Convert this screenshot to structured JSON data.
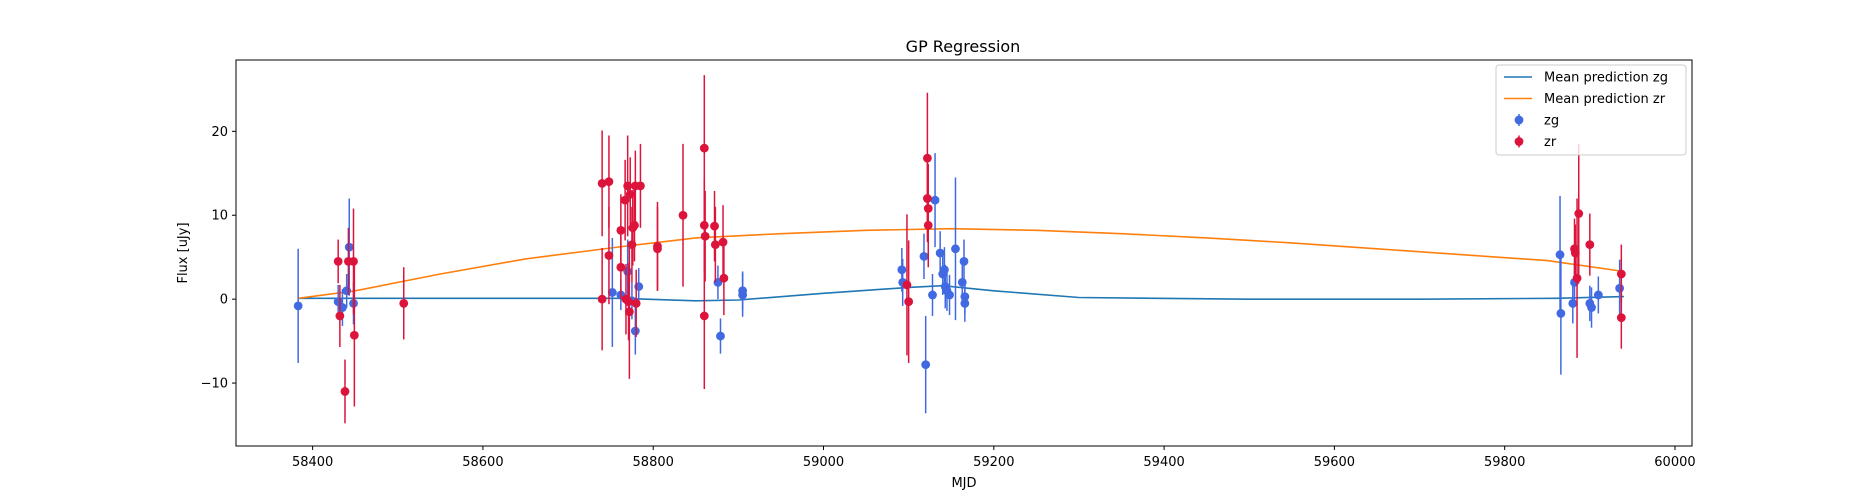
{
  "chart_data": {
    "type": "scatter",
    "title": "GP Regression",
    "xlabel": "MJD",
    "ylabel": "Flux [uJy]",
    "xlim": [
      58310,
      60020
    ],
    "ylim": [
      -17.5,
      28.5
    ],
    "xticks": [
      58400,
      58600,
      58800,
      59000,
      59200,
      59400,
      59600,
      59800,
      60000
    ],
    "yticks": [
      -10,
      0,
      10,
      20
    ],
    "grid": false,
    "legend_position": "top-right",
    "colors": {
      "mean_zg": "#1f77b4",
      "mean_zr": "#ff7f0e",
      "zg": "#4169e1",
      "zr": "#dc143c"
    },
    "legend": [
      {
        "label": "Mean prediction zg",
        "kind": "line",
        "series": "mean_zg"
      },
      {
        "label": "Mean prediction zr",
        "kind": "line",
        "series": "mean_zr"
      },
      {
        "label": "zg",
        "kind": "errorbar",
        "series": "zg"
      },
      {
        "label": "zr",
        "kind": "errorbar",
        "series": "zr"
      }
    ],
    "lines": [
      {
        "name": "Mean prediction zg",
        "key": "mean_zg",
        "x": [
          58383,
          58440,
          58600,
          58760,
          58850,
          58900,
          59000,
          59100,
          59140,
          59200,
          59300,
          59500,
          59700,
          59860,
          59940
        ],
        "y": [
          0.1,
          0.1,
          0.1,
          0.1,
          -0.2,
          -0.1,
          0.7,
          1.4,
          1.6,
          1.0,
          0.2,
          0.0,
          0.0,
          0.1,
          0.3
        ]
      },
      {
        "name": "Mean prediction zr",
        "key": "mean_zr",
        "x": [
          58383,
          58450,
          58550,
          58650,
          58750,
          58850,
          58950,
          59050,
          59150,
          59250,
          59350,
          59450,
          59550,
          59650,
          59750,
          59850,
          59940
        ],
        "y": [
          0.1,
          1.0,
          3.0,
          4.8,
          6.1,
          7.3,
          7.8,
          8.2,
          8.4,
          8.2,
          7.8,
          7.3,
          6.7,
          6.0,
          5.3,
          4.6,
          3.3
        ]
      }
    ],
    "series": [
      {
        "name": "zg",
        "key": "zg",
        "points": [
          {
            "x": 58383,
            "y": -0.8,
            "err": 6.8
          },
          {
            "x": 58430,
            "y": -0.3,
            "err": 2.0
          },
          {
            "x": 58435,
            "y": -1.0,
            "err": 2.2
          },
          {
            "x": 58440,
            "y": 1.0,
            "err": 2.0
          },
          {
            "x": 58443,
            "y": 6.2,
            "err": 5.8
          },
          {
            "x": 58448,
            "y": -0.5,
            "err": 2.5
          },
          {
            "x": 58752,
            "y": 0.8,
            "err": 6.5
          },
          {
            "x": 58762,
            "y": 0.5,
            "err": 1.8
          },
          {
            "x": 58770,
            "y": 3.3,
            "err": 3.8
          },
          {
            "x": 58775,
            "y": -0.2,
            "err": 2.2
          },
          {
            "x": 58779,
            "y": -3.8,
            "err": 2.8
          },
          {
            "x": 58783,
            "y": 1.5,
            "err": 2.2
          },
          {
            "x": 58876,
            "y": 2.0,
            "err": 2.0
          },
          {
            "x": 58879,
            "y": -4.4,
            "err": 2.1
          },
          {
            "x": 58905,
            "y": 0.5,
            "err": 2.6
          },
          {
            "x": 58905,
            "y": 1.0,
            "err": 2.3
          },
          {
            "x": 59092,
            "y": 3.5,
            "err": 2.6
          },
          {
            "x": 59093,
            "y": 2.0,
            "err": 2.8
          },
          {
            "x": 59118,
            "y": 5.1,
            "err": 2.7
          },
          {
            "x": 59120,
            "y": -7.8,
            "err": 5.8
          },
          {
            "x": 59128,
            "y": 0.5,
            "err": 2.5
          },
          {
            "x": 59131,
            "y": 11.8,
            "err": 5.6
          },
          {
            "x": 59137,
            "y": 5.5,
            "err": 2.6
          },
          {
            "x": 59140,
            "y": 3.0,
            "err": 2.5
          },
          {
            "x": 59142,
            "y": 3.5,
            "err": 2.7
          },
          {
            "x": 59143,
            "y": 1.5,
            "err": 2.6
          },
          {
            "x": 59145,
            "y": 1.0,
            "err": 2.4
          },
          {
            "x": 59148,
            "y": 0.5,
            "err": 2.4
          },
          {
            "x": 59155,
            "y": 6.0,
            "err": 8.5
          },
          {
            "x": 59163,
            "y": 2.0,
            "err": 2.2
          },
          {
            "x": 59165,
            "y": 4.5,
            "err": 2.6
          },
          {
            "x": 59166,
            "y": -0.5,
            "err": 2.2
          },
          {
            "x": 59166,
            "y": 0.3,
            "err": 2.0
          },
          {
            "x": 59865,
            "y": 5.3,
            "err": 7.0
          },
          {
            "x": 59866,
            "y": -1.7,
            "err": 7.3
          },
          {
            "x": 59880,
            "y": -0.5,
            "err": 2.4
          },
          {
            "x": 59882,
            "y": 2.0,
            "err": 2.6
          },
          {
            "x": 59900,
            "y": -0.5,
            "err": 2.1
          },
          {
            "x": 59902,
            "y": -1.0,
            "err": 2.4
          },
          {
            "x": 59910,
            "y": 0.5,
            "err": 2.2
          },
          {
            "x": 59935,
            "y": 1.3,
            "err": 3.4
          }
        ]
      },
      {
        "name": "zr",
        "key": "zr",
        "points": [
          {
            "x": 58430,
            "y": 4.5,
            "err": 2.6
          },
          {
            "x": 58432,
            "y": -2.0,
            "err": 3.7
          },
          {
            "x": 58438,
            "y": -11.0,
            "err": 3.8
          },
          {
            "x": 58442,
            "y": 4.5,
            "err": 4.0
          },
          {
            "x": 58448,
            "y": 4.5,
            "err": 6.3
          },
          {
            "x": 58449,
            "y": -4.3,
            "err": 8.5
          },
          {
            "x": 58507,
            "y": -0.5,
            "err": 4.3
          },
          {
            "x": 58740,
            "y": 13.8,
            "err": 6.3
          },
          {
            "x": 58740,
            "y": 0.0,
            "err": 6.1
          },
          {
            "x": 58748,
            "y": 14.0,
            "err": 5.5
          },
          {
            "x": 58748,
            "y": 5.2,
            "err": 5.8
          },
          {
            "x": 58762,
            "y": 8.2,
            "err": 4.3
          },
          {
            "x": 58762,
            "y": 3.8,
            "err": 3.8
          },
          {
            "x": 58767,
            "y": 11.8,
            "err": 4.8
          },
          {
            "x": 58768,
            "y": 0.0,
            "err": 4.2
          },
          {
            "x": 58770,
            "y": 13.5,
            "err": 6.0
          },
          {
            "x": 58771,
            "y": -0.3,
            "err": 4.6
          },
          {
            "x": 58772,
            "y": -1.5,
            "err": 8.0
          },
          {
            "x": 58773,
            "y": 12.5,
            "err": 4.4
          },
          {
            "x": 58775,
            "y": 6.5,
            "err": 4.5
          },
          {
            "x": 58776,
            "y": 8.5,
            "err": 4.5
          },
          {
            "x": 58778,
            "y": 8.8,
            "err": 4.3
          },
          {
            "x": 58779,
            "y": 13.5,
            "err": 4.2
          },
          {
            "x": 58780,
            "y": -0.5,
            "err": 4.0
          },
          {
            "x": 58785,
            "y": 13.5,
            "err": 5.0
          },
          {
            "x": 58805,
            "y": 6.3,
            "err": 5.3
          },
          {
            "x": 58805,
            "y": 6.0,
            "err": 5.0
          },
          {
            "x": 58835,
            "y": 10.0,
            "err": 8.5
          },
          {
            "x": 58860,
            "y": 18.0,
            "err": 8.7
          },
          {
            "x": 58860,
            "y": 8.8,
            "err": 5.6
          },
          {
            "x": 58860,
            "y": -2.0,
            "err": 8.7
          },
          {
            "x": 58861,
            "y": 7.5,
            "err": 5.4
          },
          {
            "x": 58872,
            "y": 8.7,
            "err": 4.2
          },
          {
            "x": 58873,
            "y": 6.5,
            "err": 4.5
          },
          {
            "x": 58882,
            "y": 6.8,
            "err": 4.4
          },
          {
            "x": 58883,
            "y": 2.5,
            "err": 4.4
          },
          {
            "x": 59098,
            "y": 1.7,
            "err": 8.4
          },
          {
            "x": 59100,
            "y": -0.3,
            "err": 7.3
          },
          {
            "x": 59122,
            "y": 16.8,
            "err": 7.8
          },
          {
            "x": 59122,
            "y": 12.0,
            "err": 5.2
          },
          {
            "x": 59123,
            "y": 10.8,
            "err": 5.3
          },
          {
            "x": 59123,
            "y": 8.8,
            "err": 5.0
          },
          {
            "x": 59882,
            "y": 6.0,
            "err": 3.6
          },
          {
            "x": 59883,
            "y": 5.5,
            "err": 3.4
          },
          {
            "x": 59885,
            "y": 2.5,
            "err": 9.5
          },
          {
            "x": 59887,
            "y": 10.2,
            "err": 8.3
          },
          {
            "x": 59900,
            "y": 6.5,
            "err": 3.7
          },
          {
            "x": 59937,
            "y": 3.0,
            "err": 3.5
          },
          {
            "x": 59937,
            "y": -2.2,
            "err": 3.7
          }
        ]
      }
    ]
  }
}
